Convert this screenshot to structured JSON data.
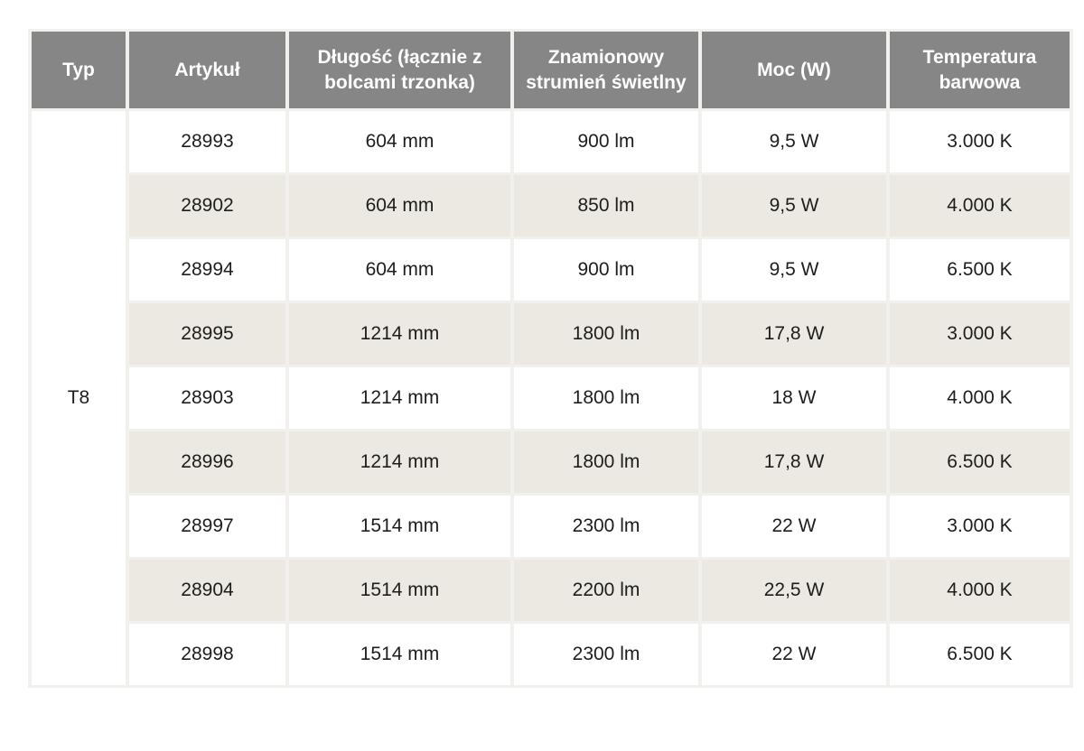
{
  "table": {
    "headers": [
      "Typ",
      "Artykuł",
      "Długość (łącznie z bolcami trzonka)",
      "Znamionowy strumień świetlny",
      "Moc (W)",
      "Temperatura barwowa"
    ],
    "type_label": "T8",
    "rows": [
      {
        "artykul": "28993",
        "dlugosc": "604 mm",
        "strumien": "900 lm",
        "moc": "9,5 W",
        "temperatura": "3.000 K"
      },
      {
        "artykul": "28902",
        "dlugosc": "604 mm",
        "strumien": "850 lm",
        "moc": "9,5 W",
        "temperatura": "4.000 K"
      },
      {
        "artykul": "28994",
        "dlugosc": "604 mm",
        "strumien": "900 lm",
        "moc": "9,5 W",
        "temperatura": "6.500 K"
      },
      {
        "artykul": "28995",
        "dlugosc": "1214 mm",
        "strumien": "1800 lm",
        "moc": "17,8 W",
        "temperatura": "3.000 K"
      },
      {
        "artykul": "28903",
        "dlugosc": "1214 mm",
        "strumien": "1800 lm",
        "moc": "18 W",
        "temperatura": "4.000 K"
      },
      {
        "artykul": "28996",
        "dlugosc": "1214 mm",
        "strumien": "1800 lm",
        "moc": "17,8 W",
        "temperatura": "6.500 K"
      },
      {
        "artykul": "28997",
        "dlugosc": "1514 mm",
        "strumien": "2300 lm",
        "moc": "22 W",
        "temperatura": "3.000 K"
      },
      {
        "artykul": "28904",
        "dlugosc": "1514 mm",
        "strumien": "2200 lm",
        "moc": "22,5 W",
        "temperatura": "4.000 K"
      },
      {
        "artykul": "28998",
        "dlugosc": "1514 mm",
        "strumien": "2300 lm",
        "moc": "22 W",
        "temperatura": "6.500 K"
      }
    ],
    "colors": {
      "header_bg": "#868686",
      "header_text": "#ffffff",
      "row_bg": "#ffffff",
      "row_alt_bg": "#ece9e2",
      "cell_gap": "#f2f0ec",
      "text": "#1d1d1b"
    }
  }
}
